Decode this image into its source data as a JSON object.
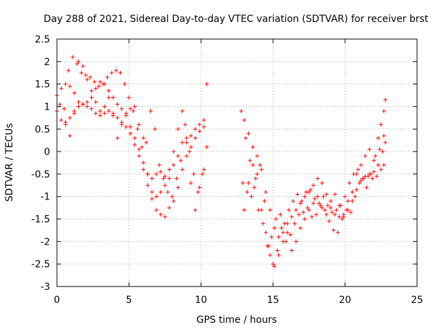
{
  "chart_data": {
    "type": "scatter",
    "title": "Day 288 of 2021, Sidereal Day-to-day VTEC variation (SDTVAR) for receiver brst",
    "xlabel": "GPS time / hours",
    "ylabel": "SDTVAR / TECUs",
    "xlim": [
      0,
      25
    ],
    "ylim": [
      -3,
      2.5
    ],
    "xticks": [
      "0",
      "5",
      "10",
      "15",
      "20",
      "25"
    ],
    "yticks": [
      "-3",
      "-2.5",
      "-2",
      "-1.5",
      "-1",
      "-0.5",
      "0",
      "0.5",
      "1",
      "1.5",
      "2",
      "2.5"
    ],
    "xtick_values": [
      0,
      5,
      10,
      15,
      20,
      25
    ],
    "ytick_values": [
      -3,
      -2.5,
      -2,
      -1.5,
      -1,
      -0.5,
      0,
      0.5,
      1,
      1.5,
      2,
      2.5
    ],
    "grid": true,
    "marker": "plus",
    "color": "#ff0000",
    "series": [
      {
        "points": [
          [
            0.0,
            1.25
          ],
          [
            0.3,
            1.4
          ],
          [
            0.6,
            1.5
          ],
          [
            0.9,
            1.45
          ],
          [
            1.2,
            1.3
          ],
          [
            1.5,
            1.1
          ],
          [
            1.8,
            1.05
          ],
          [
            2.1,
            1.1
          ],
          [
            2.4,
            1.2
          ],
          [
            2.7,
            1.4
          ],
          [
            3.0,
            1.55
          ],
          [
            3.3,
            1.5
          ],
          [
            3.6,
            1.35
          ],
          [
            3.9,
            1.2
          ],
          [
            4.2,
            1.05
          ],
          [
            4.5,
            0.95
          ],
          [
            4.8,
            0.8
          ],
          [
            5.1,
            0.55
          ],
          [
            5.4,
            0.3
          ],
          [
            5.7,
            0.05
          ],
          [
            6.0,
            -0.25
          ],
          [
            6.3,
            -0.5
          ],
          [
            6.6,
            -0.6
          ],
          [
            6.9,
            -0.5
          ],
          [
            7.2,
            -0.45
          ],
          [
            7.5,
            -0.55
          ],
          [
            7.8,
            -0.4
          ],
          [
            8.1,
            -0.3
          ],
          [
            8.4,
            -0.1
          ],
          [
            8.7,
            0.2
          ],
          [
            9.0,
            0.3
          ],
          [
            9.3,
            0.35
          ],
          [
            9.6,
            0.5
          ],
          [
            9.9,
            0.6
          ],
          [
            10.2,
            0.7
          ]
        ]
      },
      {
        "points": [
          [
            0.0,
            0.9
          ],
          [
            0.3,
            0.7
          ],
          [
            0.6,
            0.65
          ],
          [
            0.9,
            0.75
          ],
          [
            1.2,
            0.85
          ],
          [
            1.5,
            1.0
          ],
          [
            1.8,
            1.05
          ],
          [
            2.1,
            1.0
          ],
          [
            2.4,
            0.95
          ],
          [
            2.7,
            0.85
          ],
          [
            3.0,
            0.8
          ],
          [
            3.3,
            0.85
          ],
          [
            3.6,
            0.9
          ],
          [
            3.9,
            0.85
          ],
          [
            4.2,
            0.75
          ],
          [
            4.5,
            0.65
          ],
          [
            4.8,
            0.55
          ],
          [
            5.1,
            0.4
          ],
          [
            5.4,
            0.15
          ],
          [
            5.7,
            -0.1
          ],
          [
            6.0,
            -0.4
          ],
          [
            6.3,
            -0.75
          ],
          [
            6.6,
            -1.05
          ],
          [
            6.9,
            -1.3
          ],
          [
            7.2,
            -1.4
          ],
          [
            7.5,
            -1.45
          ],
          [
            7.8,
            -1.25
          ],
          [
            8.1,
            -1.1
          ],
          [
            8.4,
            -0.8
          ],
          [
            8.7,
            -0.4
          ],
          [
            9.0,
            -0.1
          ],
          [
            9.3,
            0.1
          ],
          [
            9.6,
            0.3
          ],
          [
            9.9,
            0.45
          ],
          [
            10.2,
            0.55
          ]
        ]
      },
      {
        "points": [
          [
            0.2,
            1.05
          ],
          [
            0.5,
            0.95
          ],
          [
            0.8,
            1.8
          ],
          [
            1.1,
            2.1
          ],
          [
            1.4,
            1.95
          ],
          [
            1.7,
            1.75
          ],
          [
            2.0,
            1.7
          ],
          [
            2.3,
            1.65
          ],
          [
            2.6,
            1.55
          ],
          [
            2.9,
            1.45
          ],
          [
            3.2,
            1.5
          ],
          [
            3.5,
            1.65
          ],
          [
            3.8,
            1.75
          ],
          [
            4.1,
            1.8
          ],
          [
            4.4,
            1.75
          ],
          [
            4.7,
            1.5
          ],
          [
            5.0,
            1.2
          ],
          [
            5.3,
            0.9
          ],
          [
            5.6,
            0.5
          ],
          [
            5.9,
            0.1
          ],
          [
            6.2,
            0.2
          ],
          [
            6.5,
            0.9
          ],
          [
            6.8,
            0.5
          ],
          [
            7.1,
            -0.3
          ],
          [
            7.4,
            -0.6
          ],
          [
            7.7,
            -0.9
          ],
          [
            8.0,
            -1.0
          ],
          [
            8.3,
            -0.6
          ],
          [
            8.6,
            -0.2
          ],
          [
            8.9,
            0.6
          ],
          [
            9.2,
            0.0
          ],
          [
            9.5,
            -0.5
          ],
          [
            9.8,
            -0.9
          ],
          [
            10.1,
            -0.5
          ],
          [
            10.4,
            1.5
          ]
        ]
      },
      {
        "points": [
          [
            0.6,
            0.6
          ],
          [
            0.9,
            0.35
          ],
          [
            1.2,
            0.9
          ],
          [
            1.5,
            2.0
          ],
          [
            1.8,
            1.9
          ],
          [
            2.1,
            1.6
          ],
          [
            2.4,
            1.35
          ],
          [
            2.7,
            1.1
          ],
          [
            3.0,
            0.9
          ],
          [
            3.3,
            1.0
          ],
          [
            3.6,
            1.2
          ],
          [
            3.9,
            0.8
          ],
          [
            4.2,
            0.3
          ],
          [
            4.5,
            0.6
          ],
          [
            4.8,
            0.85
          ],
          [
            5.1,
            0.95
          ],
          [
            5.4,
            1.0
          ],
          [
            5.7,
            0.6
          ],
          [
            6.0,
            0.3
          ],
          [
            6.3,
            -0.5
          ],
          [
            6.6,
            -0.9
          ],
          [
            6.9,
            -1.0
          ],
          [
            7.2,
            -0.9
          ],
          [
            7.5,
            -0.75
          ],
          [
            7.8,
            -0.6
          ],
          [
            8.1,
            0.0
          ],
          [
            8.4,
            0.5
          ],
          [
            8.7,
            0.9
          ],
          [
            9.0,
            0.2
          ],
          [
            9.3,
            -0.7
          ],
          [
            9.6,
            -1.3
          ],
          [
            9.9,
            -0.8
          ],
          [
            10.2,
            -0.4
          ],
          [
            10.4,
            0.1
          ]
        ]
      },
      {
        "points": [
          [
            12.8,
            0.9
          ],
          [
            13.0,
            0.7
          ],
          [
            13.3,
            0.4
          ],
          [
            13.6,
            0.1
          ],
          [
            13.9,
            -0.1
          ],
          [
            14.2,
            -0.4
          ],
          [
            14.5,
            -0.9
          ],
          [
            14.8,
            -1.3
          ],
          [
            15.1,
            -1.7
          ],
          [
            15.4,
            -1.9
          ],
          [
            15.7,
            -1.8
          ],
          [
            16.0,
            -1.6
          ],
          [
            16.3,
            -1.45
          ],
          [
            16.6,
            -1.3
          ],
          [
            16.9,
            -1.15
          ],
          [
            17.2,
            -1.0
          ],
          [
            17.5,
            -0.9
          ],
          [
            17.8,
            -0.75
          ],
          [
            18.1,
            -0.6
          ],
          [
            18.4,
            -0.7
          ],
          [
            18.7,
            -0.95
          ],
          [
            19.0,
            -1.25
          ],
          [
            19.3,
            -1.4
          ],
          [
            19.6,
            -1.45
          ],
          [
            19.9,
            -1.4
          ],
          [
            20.2,
            -1.3
          ],
          [
            20.5,
            -1.1
          ],
          [
            20.8,
            -0.85
          ],
          [
            21.1,
            -0.65
          ],
          [
            21.4,
            -0.55
          ],
          [
            21.7,
            -0.5
          ],
          [
            22.0,
            -0.45
          ],
          [
            22.3,
            -0.3
          ],
          [
            22.6,
            0.0
          ],
          [
            22.8,
            0.2
          ]
        ]
      },
      {
        "points": [
          [
            12.9,
            -0.7
          ],
          [
            13.2,
            -0.9
          ],
          [
            13.5,
            -1.0
          ],
          [
            13.8,
            -0.6
          ],
          [
            14.1,
            -0.3
          ],
          [
            14.4,
            -1.1
          ],
          [
            14.7,
            -2.1
          ],
          [
            15.0,
            -2.5
          ],
          [
            15.3,
            -2.2
          ],
          [
            15.6,
            -1.7
          ],
          [
            15.9,
            -2.0
          ],
          [
            16.2,
            -1.85
          ],
          [
            16.5,
            -1.6
          ],
          [
            16.8,
            -1.4
          ],
          [
            17.1,
            -1.35
          ],
          [
            17.4,
            -1.25
          ],
          [
            17.7,
            -1.45
          ],
          [
            18.0,
            -1.4
          ],
          [
            18.3,
            -1.2
          ],
          [
            18.6,
            -1.3
          ],
          [
            18.9,
            -1.55
          ],
          [
            19.2,
            -1.75
          ],
          [
            19.5,
            -1.8
          ],
          [
            19.8,
            -1.5
          ],
          [
            20.1,
            -1.3
          ],
          [
            20.4,
            -1.35
          ],
          [
            20.7,
            -1.0
          ],
          [
            21.0,
            -0.7
          ],
          [
            21.3,
            -0.6
          ],
          [
            21.6,
            -0.55
          ],
          [
            21.9,
            -0.6
          ],
          [
            22.2,
            -0.55
          ],
          [
            22.5,
            -0.4
          ],
          [
            22.7,
            -0.3
          ]
        ]
      },
      {
        "points": [
          [
            13.0,
            -1.3
          ],
          [
            13.3,
            -0.7
          ],
          [
            13.6,
            -0.3
          ],
          [
            13.9,
            -0.5
          ],
          [
            14.2,
            -1.3
          ],
          [
            14.5,
            -1.8
          ],
          [
            14.8,
            -2.3
          ],
          [
            15.1,
            -2.55
          ],
          [
            15.4,
            -2.3
          ],
          [
            15.7,
            -2.0
          ],
          [
            16.0,
            -1.8
          ],
          [
            16.3,
            -2.2
          ],
          [
            16.6,
            -2.0
          ],
          [
            16.9,
            -1.7
          ],
          [
            17.2,
            -1.5
          ],
          [
            17.5,
            -1.3
          ],
          [
            17.8,
            -1.15
          ],
          [
            18.1,
            -1.0
          ],
          [
            18.4,
            -1.25
          ],
          [
            18.7,
            -1.4
          ],
          [
            19.0,
            -1.1
          ],
          [
            19.3,
            -0.95
          ],
          [
            19.6,
            -1.2
          ],
          [
            19.9,
            -1.45
          ],
          [
            20.2,
            -1.1
          ],
          [
            20.5,
            -0.9
          ],
          [
            20.8,
            -0.5
          ],
          [
            21.1,
            -0.3
          ],
          [
            21.4,
            -0.1
          ],
          [
            21.7,
            0.05
          ],
          [
            22.0,
            -0.2
          ],
          [
            22.3,
            0.3
          ],
          [
            22.5,
            0.6
          ],
          [
            22.7,
            0.9
          ],
          [
            22.8,
            1.15
          ]
        ]
      },
      {
        "points": [
          [
            13.1,
            0.3
          ],
          [
            13.4,
            -0.2
          ],
          [
            13.7,
            -0.8
          ],
          [
            14.0,
            -1.3
          ],
          [
            14.3,
            -1.6
          ],
          [
            14.6,
            -2.1
          ],
          [
            14.9,
            -1.9
          ],
          [
            15.2,
            -1.5
          ],
          [
            15.5,
            -1.4
          ],
          [
            15.8,
            -1.6
          ],
          [
            16.1,
            -1.3
          ],
          [
            16.4,
            -1.1
          ],
          [
            16.7,
            -0.95
          ],
          [
            17.0,
            -1.1
          ],
          [
            17.3,
            -0.9
          ],
          [
            17.6,
            -0.85
          ],
          [
            17.9,
            -1.05
          ],
          [
            18.2,
            -1.15
          ],
          [
            18.5,
            -1.0
          ],
          [
            18.8,
            -1.2
          ],
          [
            19.1,
            -1.35
          ],
          [
            19.4,
            -1.3
          ],
          [
            19.7,
            -1.2
          ],
          [
            20.0,
            -1.0
          ],
          [
            20.3,
            -0.7
          ],
          [
            20.6,
            -0.5
          ],
          [
            20.9,
            -0.4
          ],
          [
            21.2,
            -0.6
          ],
          [
            21.5,
            -0.8
          ],
          [
            21.8,
            -0.5
          ],
          [
            22.1,
            -0.1
          ],
          [
            22.4,
            0.05
          ],
          [
            22.7,
            0.35
          ]
        ]
      }
    ]
  }
}
